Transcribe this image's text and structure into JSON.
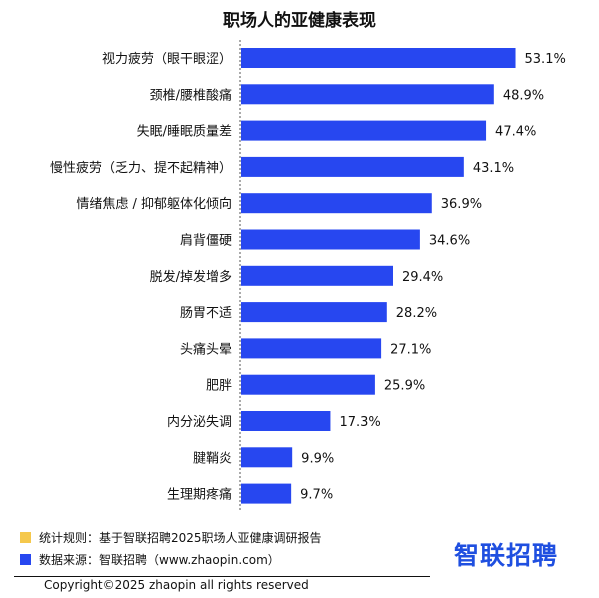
{
  "chart_data": {
    "type": "bar",
    "orientation": "horizontal",
    "title": "职场人的亚健康表现",
    "categories": [
      "视力疲劳（眼干眼涩）",
      "颈椎/腰椎酸痛",
      "失眠/睡眠质量差",
      "慢性疲劳（乏力、提不起精神）",
      "情绪焦虑 / 抑郁躯体化倾向",
      "肩背僵硬",
      "脱发/掉发增多",
      "肠胃不适",
      "头痛头晕",
      "肥胖",
      "内分泌失调",
      "腱鞘炎",
      "生理期疼痛"
    ],
    "values": [
      53.1,
      48.9,
      47.4,
      43.1,
      36.9,
      34.6,
      29.4,
      28.2,
      27.1,
      25.9,
      17.3,
      9.9,
      9.7
    ],
    "value_labels": [
      "53.1%",
      "48.9%",
      "47.4%",
      "43.1%",
      "36.9%",
      "34.6%",
      "29.4%",
      "28.2%",
      "27.1%",
      "25.9%",
      "17.3%",
      "9.9%",
      "9.7%"
    ],
    "bar_color": "#2747f0",
    "xlim": [
      0,
      60
    ],
    "grid": false,
    "legend": "none"
  },
  "footer": {
    "note_rules": "统计规则：基于智联招聘2025职场人亚健康调研报告",
    "note_rules_color": "#f5c84c",
    "note_source": "数据来源：智联招聘（www.zhaopin.com）",
    "note_source_color": "#2747f0",
    "logo": "智联招聘",
    "copyright": "Copyright©2025 zhaopin all rights reserved"
  }
}
